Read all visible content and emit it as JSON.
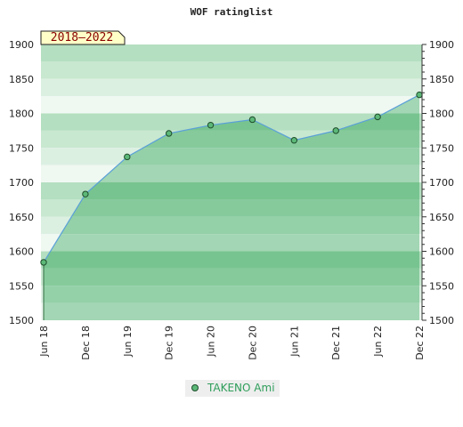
{
  "chart_data": {
    "type": "area",
    "title": "WOF ratinglist",
    "period_label": "2018–2022",
    "x": [
      "Jun 18",
      "Dec 18",
      "Jun 19",
      "Dec 19",
      "Jun 20",
      "Dec 20",
      "Jun 21",
      "Dec 21",
      "Jun 22",
      "Dec 22"
    ],
    "series": [
      {
        "name": "TAKENO Ami",
        "values": [
          1584,
          1683,
          1737,
          1771,
          1783,
          1791,
          1761,
          1775,
          1795,
          1827
        ]
      }
    ],
    "yticks": [
      1500,
      1550,
      1600,
      1650,
      1700,
      1750,
      1800,
      1850,
      1900
    ],
    "ytick_labels": [
      "1500",
      "1550",
      "1600",
      "1650",
      "1700",
      "1750",
      "1800",
      "1850",
      "1900"
    ],
    "ylim": [
      1500,
      1900
    ],
    "grid": true,
    "legend_position": "bottom",
    "colors": {
      "line": "#5aa0d8",
      "marker_fill": "#5cb878",
      "marker_stroke": "#1e4d2b",
      "band_light": [
        "#b4dfc0",
        "#c8e8d0",
        "#dcf0e2",
        "#f0f8f2"
      ],
      "band_dark": [
        "#78c490",
        "#86ca9c",
        "#94d0a8",
        "#a2d6b4"
      ],
      "badge_fill": "#ffffc8",
      "legend_bg": "#eeeeee"
    }
  }
}
